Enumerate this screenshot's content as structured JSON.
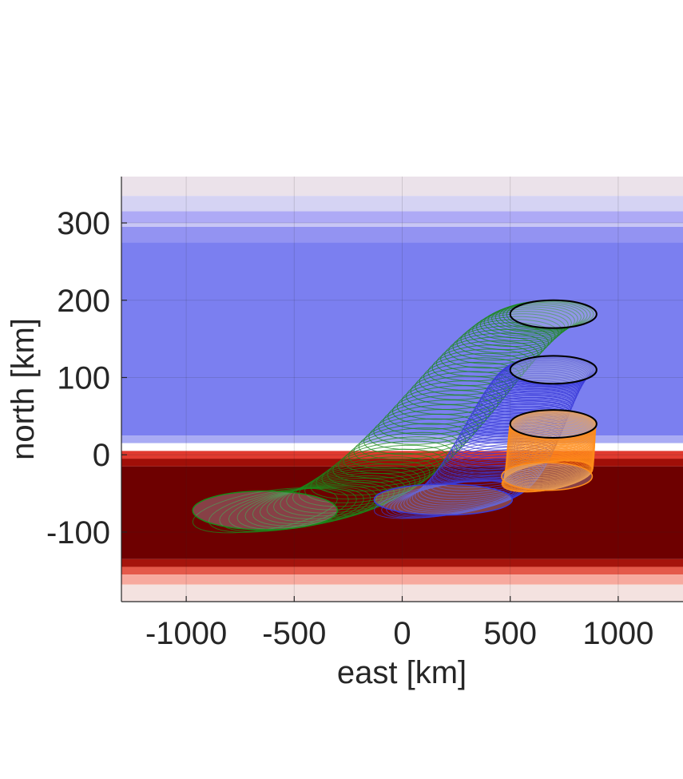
{
  "chart_data": {
    "type": "line",
    "title": "",
    "xlabel": "east [km]",
    "ylabel": "north [km]",
    "xlim": [
      -1300,
      1300
    ],
    "ylim": [
      -190,
      360
    ],
    "xticks": [
      -1000,
      -500,
      0,
      500,
      1000
    ],
    "xtick_labels": [
      "-1000",
      "-500",
      "0",
      "500",
      "1000"
    ],
    "yticks": [
      -100,
      0,
      100,
      200,
      300
    ],
    "ytick_labels": [
      "-100",
      "0",
      "100",
      "200",
      "300"
    ],
    "grid": true,
    "legend": "none",
    "background_field": {
      "description_colors": {
        "positive": "#7b7ff0",
        "negative": "#6e0000",
        "zero": "#ffffff"
      },
      "bands": [
        {
          "y0": 335,
          "y1": 360,
          "color": "#ebe2ea"
        },
        {
          "y0": 315,
          "y1": 335,
          "color": "#d5d3f3"
        },
        {
          "y0": 300,
          "y1": 315,
          "color": "#aeaaf6"
        },
        {
          "y0": 295,
          "y1": 300,
          "color": "#c8c6f5"
        },
        {
          "y0": 275,
          "y1": 295,
          "color": "#9393f2"
        },
        {
          "y0": 25,
          "y1": 275,
          "color": "#7b7ff0"
        },
        {
          "y0": 15,
          "y1": 25,
          "color": "#a9abf4"
        },
        {
          "y0": 5,
          "y1": 15,
          "color": "#ffffff"
        },
        {
          "y0": -5,
          "y1": 5,
          "color": "#e03a2f"
        },
        {
          "y0": -15,
          "y1": -5,
          "color": "#a00f08"
        },
        {
          "y0": -135,
          "y1": -15,
          "color": "#6e0000"
        },
        {
          "y0": -145,
          "y1": -135,
          "color": "#a5140c"
        },
        {
          "y0": -155,
          "y1": -145,
          "color": "#e4594a"
        },
        {
          "y0": -168,
          "y1": -155,
          "color": "#f7a99e"
        },
        {
          "y0": -190,
          "y1": -168,
          "color": "#f4e2e0"
        }
      ]
    },
    "series": [
      {
        "color": "#1a8a1a",
        "top": {
          "cx": 700,
          "cy": 182,
          "rx": 200,
          "ry": 18
        },
        "bottom": {
          "x0": -970,
          "x1": -300,
          "y": -72,
          "depth": 25
        },
        "bulge": 35
      },
      {
        "color": "#3a3ad8",
        "top": {
          "cx": 700,
          "cy": 110,
          "rx": 200,
          "ry": 18
        },
        "bottom": {
          "x0": -130,
          "x1": 510,
          "y": -58,
          "depth": 20
        },
        "bulge": 10
      },
      {
        "color": "#ff8c1a",
        "top": {
          "cx": 700,
          "cy": 40,
          "rx": 200,
          "ry": 18
        },
        "bottom": {
          "x0": 460,
          "x1": 880,
          "y": -28,
          "depth": 18
        },
        "bulge": 0
      }
    ],
    "top_rings": [
      {
        "cx": 700,
        "cy": 182,
        "rx": 200,
        "ry": 18
      },
      {
        "cx": 700,
        "cy": 110,
        "rx": 200,
        "ry": 18
      },
      {
        "cx": 700,
        "cy": 40,
        "rx": 200,
        "ry": 18
      }
    ]
  }
}
